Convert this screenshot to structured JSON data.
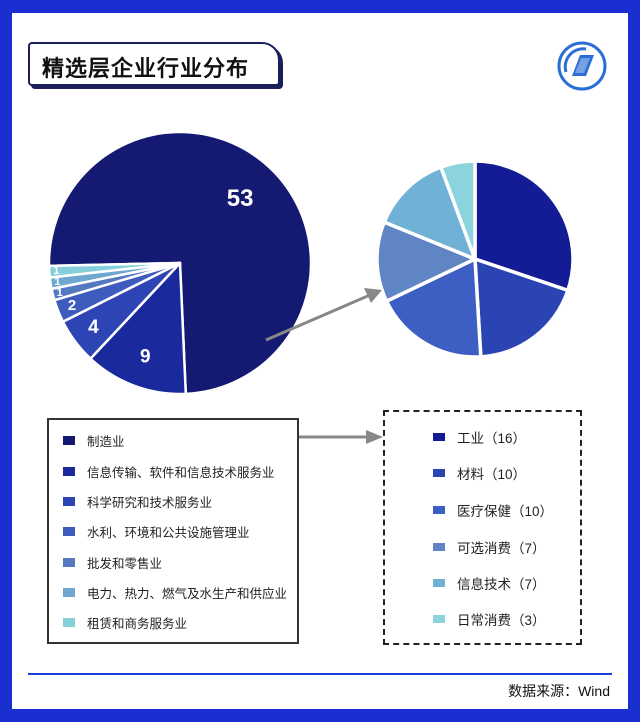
{
  "title": "精选层企业行业分布",
  "source": "数据来源：Wind",
  "logo_icon": "wind-logo-icon",
  "colors": {
    "frame": "#1a2fcf",
    "arrow": "#888888"
  },
  "chart_data": [
    {
      "type": "pie",
      "title": "",
      "slices": [
        {
          "label": "制造业",
          "value": 53,
          "color": "#141a72"
        },
        {
          "label": "信息传输、软件和信息技术服务业",
          "value": 9,
          "color": "#1a2a9c"
        },
        {
          "label": "科学研究和技术服务业",
          "value": 4,
          "color": "#2c44b4"
        },
        {
          "label": "水利、环境和公共设施管理业",
          "value": 2,
          "color": "#3e5cbe"
        },
        {
          "label": "批发和零售业",
          "value": 1,
          "color": "#5579c0"
        },
        {
          "label": "电力、热力、燃气及水生产和供应业",
          "value": 1,
          "color": "#6ea7d0"
        },
        {
          "label": "租赁和商务服务业",
          "value": 1,
          "color": "#85cfdb"
        }
      ]
    },
    {
      "type": "pie",
      "title": "",
      "slices": [
        {
          "label": "工业",
          "value": 16,
          "color": "#131c94"
        },
        {
          "label": "材料",
          "value": 10,
          "color": "#2a44b4"
        },
        {
          "label": "医疗保健",
          "value": 10,
          "color": "#3d5ec2"
        },
        {
          "label": "可选消费",
          "value": 7,
          "color": "#5f85c4"
        },
        {
          "label": "信息技术",
          "value": 7,
          "color": "#6fb2d6"
        },
        {
          "label": "日常消费",
          "value": 3,
          "color": "#8cd4dd"
        }
      ]
    }
  ],
  "legend_left": [
    {
      "text": "制造业"
    },
    {
      "text": "信息传输、软件和信息技术服务业"
    },
    {
      "text": "科学研究和技术服务业"
    },
    {
      "text": "水利、环境和公共设施管理业"
    },
    {
      "text": "批发和零售业"
    },
    {
      "text": "电力、热力、燃气及水生产和供应业"
    },
    {
      "text": "租赁和商务服务业"
    }
  ],
  "legend_right": [
    {
      "text": "工业（16）"
    },
    {
      "text": "材料（10）"
    },
    {
      "text": "医疗保健（10）"
    },
    {
      "text": "可选消费（7）"
    },
    {
      "text": "信息技术（7）"
    },
    {
      "text": "日常消费（3）"
    }
  ]
}
